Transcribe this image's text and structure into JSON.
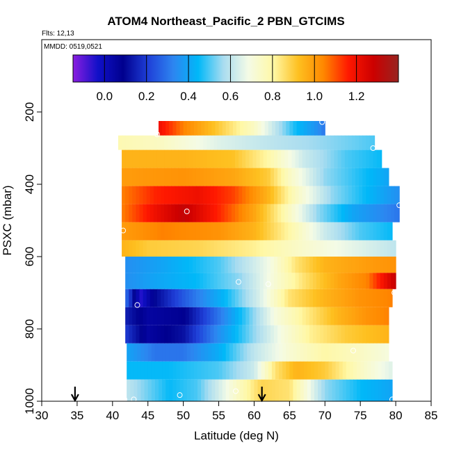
{
  "chart_data": {
    "type": "heatmap",
    "title": "ATOM4 Northeast_Pacific_2 PBN_GTCIMS",
    "flights_note": "Flts: 12,13",
    "dates_note": "MMDD: 0519,0521",
    "xlabel": "Latitude (deg N)",
    "ylabel": "PSXC (mbar)",
    "xlim": [
      30,
      85
    ],
    "ylim": [
      1000,
      0
    ],
    "x_ticks": [
      "30",
      "35",
      "40",
      "45",
      "50",
      "55",
      "60",
      "65",
      "70",
      "75",
      "80",
      "85"
    ],
    "y_ticks": [
      "200",
      "400",
      "600",
      "800",
      "1000"
    ],
    "colorbar": {
      "range": [
        -0.15,
        1.4
      ],
      "ticks": [
        "0.0",
        "0.2",
        "0.4",
        "0.6",
        "0.8",
        "1.0",
        "1.2"
      ],
      "stops": [
        "#8a1ee0",
        "#1010c8",
        "#00008e",
        "#1f3fd8",
        "#2d85f0",
        "#00b8f8",
        "#a8dcf0",
        "#f4fbe6",
        "#fff8a6",
        "#fec020",
        "#ff8800",
        "#ff1800",
        "#cc0000",
        "#982420"
      ]
    },
    "bands": [
      {
        "p_top": 225,
        "p_bot": 270,
        "lat_start": 46.5,
        "lat_end": 70,
        "stops": [
          [
            46.5,
            1.2
          ],
          [
            50,
            1.05
          ],
          [
            55,
            0.9
          ],
          [
            60,
            0.75
          ],
          [
            63,
            0.6
          ],
          [
            66,
            0.45
          ],
          [
            69,
            0.35
          ],
          [
            70,
            0.3
          ]
        ]
      },
      {
        "p_top": 265,
        "p_bot": 305,
        "lat_start": 40.8,
        "lat_end": 77,
        "stops": [
          [
            40.8,
            0.78
          ],
          [
            47,
            0.75
          ],
          [
            55,
            0.65
          ],
          [
            62,
            0.6
          ],
          [
            70,
            0.55
          ],
          [
            77,
            0.5
          ]
        ]
      },
      {
        "p_top": 305,
        "p_bot": 355,
        "lat_start": 41.3,
        "lat_end": 78,
        "stops": [
          [
            41.3,
            0.95
          ],
          [
            50,
            0.95
          ],
          [
            57,
            0.92
          ],
          [
            62,
            0.8
          ],
          [
            67,
            0.62
          ],
          [
            73,
            0.5
          ],
          [
            78,
            0.45
          ]
        ]
      },
      {
        "p_top": 355,
        "p_bot": 405,
        "lat_start": 41.3,
        "lat_end": 79,
        "stops": [
          [
            41.3,
            1.0
          ],
          [
            50,
            1.02
          ],
          [
            57,
            0.98
          ],
          [
            62,
            0.9
          ],
          [
            65,
            0.75
          ],
          [
            70,
            0.55
          ],
          [
            79,
            0.4
          ]
        ]
      },
      {
        "p_top": 405,
        "p_bot": 455,
        "lat_start": 41.3,
        "lat_end": 80.5,
        "stops": [
          [
            41.3,
            1.05
          ],
          [
            46,
            1.15
          ],
          [
            52,
            1.2
          ],
          [
            57,
            1.12
          ],
          [
            62,
            0.95
          ],
          [
            66,
            0.75
          ],
          [
            71,
            0.55
          ],
          [
            80.5,
            0.35
          ]
        ]
      },
      {
        "p_top": 455,
        "p_bot": 505,
        "lat_start": 41.3,
        "lat_end": 80.5,
        "stops": [
          [
            41.3,
            1.05
          ],
          [
            46,
            1.2
          ],
          [
            50,
            1.3
          ],
          [
            55,
            1.15
          ],
          [
            60,
            0.98
          ],
          [
            64,
            0.8
          ],
          [
            69,
            0.55
          ],
          [
            74,
            0.4
          ],
          [
            80.5,
            0.3
          ]
        ]
      },
      {
        "p_top": 505,
        "p_bot": 555,
        "lat_start": 41.3,
        "lat_end": 79.5,
        "stops": [
          [
            41.3,
            1.0
          ],
          [
            47,
            1.05
          ],
          [
            55,
            1.02
          ],
          [
            60,
            0.95
          ],
          [
            65,
            0.8
          ],
          [
            70,
            0.62
          ],
          [
            75,
            0.5
          ],
          [
            79.5,
            0.45
          ]
        ]
      },
      {
        "p_top": 555,
        "p_bot": 600,
        "lat_start": 41.3,
        "lat_end": 80,
        "stops": [
          [
            41.3,
            0.95
          ],
          [
            45,
            0.9
          ],
          [
            52,
            0.88
          ],
          [
            60,
            0.82
          ],
          [
            68,
            0.72
          ],
          [
            75,
            0.65
          ],
          [
            80,
            0.6
          ]
        ]
      },
      {
        "p_top": 600,
        "p_bot": 645,
        "lat_start": 41.8,
        "lat_end": 80,
        "stops": [
          [
            41.8,
            0.35
          ],
          [
            47,
            0.4
          ],
          [
            55,
            0.5
          ],
          [
            62,
            0.68
          ],
          [
            66,
            0.85
          ],
          [
            70,
            0.95
          ],
          [
            76,
            1.0
          ],
          [
            80,
            1.02
          ]
        ]
      },
      {
        "p_top": 645,
        "p_bot": 690,
        "lat_start": 41.8,
        "lat_end": 80,
        "stops": [
          [
            41.8,
            0.35
          ],
          [
            46,
            0.4
          ],
          [
            52,
            0.45
          ],
          [
            58,
            0.55
          ],
          [
            63,
            0.72
          ],
          [
            67,
            0.85
          ],
          [
            72,
            0.98
          ],
          [
            76,
            1.05
          ],
          [
            80,
            1.3
          ]
        ]
      },
      {
        "p_top": 690,
        "p_bot": 740,
        "lat_start": 41.8,
        "lat_end": 79.5,
        "stops": [
          [
            41.8,
            0.3
          ],
          [
            44,
            -0.05
          ],
          [
            46,
            0.1
          ],
          [
            50,
            0.25
          ],
          [
            56,
            0.45
          ],
          [
            61,
            0.65
          ],
          [
            65,
            0.85
          ],
          [
            70,
            0.95
          ],
          [
            75,
            1.02
          ],
          [
            79.5,
            1.05
          ]
        ]
      },
      {
        "p_top": 740,
        "p_bot": 790,
        "lat_start": 41.8,
        "lat_end": 79,
        "stops": [
          [
            41.8,
            0.15
          ],
          [
            45,
            0.05
          ],
          [
            50,
            0.08
          ],
          [
            55,
            0.3
          ],
          [
            59,
            0.5
          ],
          [
            63,
            0.7
          ],
          [
            67,
            0.82
          ],
          [
            72,
            0.95
          ],
          [
            76,
            1.02
          ],
          [
            79,
            1.05
          ]
        ]
      },
      {
        "p_top": 790,
        "p_bot": 840,
        "lat_start": 41.8,
        "lat_end": 79,
        "stops": [
          [
            41.8,
            0.2
          ],
          [
            45,
            0.05
          ],
          [
            50,
            0.12
          ],
          [
            55,
            0.35
          ],
          [
            60,
            0.55
          ],
          [
            64,
            0.7
          ],
          [
            68,
            0.82
          ],
          [
            73,
            0.9
          ],
          [
            79,
            0.95
          ]
        ]
      },
      {
        "p_top": 840,
        "p_bot": 890,
        "lat_start": 42,
        "lat_end": 79,
        "stops": [
          [
            42,
            0.4
          ],
          [
            46,
            0.3
          ],
          [
            50,
            0.3
          ],
          [
            55,
            0.42
          ],
          [
            60,
            0.6
          ],
          [
            65,
            0.72
          ],
          [
            70,
            0.8
          ],
          [
            75,
            0.75
          ],
          [
            79,
            0.7
          ]
        ]
      },
      {
        "p_top": 890,
        "p_bot": 940,
        "lat_start": 42,
        "lat_end": 79.5,
        "stops": [
          [
            42,
            0.45
          ],
          [
            48,
            0.45
          ],
          [
            55,
            0.5
          ],
          [
            60,
            0.62
          ],
          [
            63,
            0.85
          ],
          [
            66,
            0.95
          ],
          [
            70,
            0.9
          ],
          [
            75,
            0.75
          ],
          [
            79.5,
            0.65
          ]
        ]
      },
      {
        "p_top": 940,
        "p_bot": 1000,
        "lat_start": 42,
        "lat_end": 79.5,
        "stops": [
          [
            42,
            0.6
          ],
          [
            48,
            0.45
          ],
          [
            52,
            0.5
          ],
          [
            57,
            0.72
          ],
          [
            61,
            0.88
          ],
          [
            65,
            0.85
          ],
          [
            70,
            0.55
          ],
          [
            75,
            0.45
          ],
          [
            79.5,
            0.4
          ]
        ]
      }
    ],
    "markers": [
      {
        "lat": 69.6,
        "p": 228
      },
      {
        "lat": 46.3,
        "p": 262
      },
      {
        "lat": 76.8,
        "p": 300
      },
      {
        "lat": 80.5,
        "p": 458
      },
      {
        "lat": 50.5,
        "p": 475
      },
      {
        "lat": 41.5,
        "p": 528
      },
      {
        "lat": 57.8,
        "p": 670
      },
      {
        "lat": 62.0,
        "p": 676
      },
      {
        "lat": 79.8,
        "p": 700
      },
      {
        "lat": 43.5,
        "p": 734
      },
      {
        "lat": 74.0,
        "p": 860
      },
      {
        "lat": 57.4,
        "p": 972
      },
      {
        "lat": 49.5,
        "p": 983
      },
      {
        "lat": 41.7,
        "p": 995
      },
      {
        "lat": 43.0,
        "p": 995
      },
      {
        "lat": 79.5,
        "p": 995
      }
    ],
    "arrows": [
      {
        "lat": 34.7
      },
      {
        "lat": 61.1
      }
    ]
  }
}
